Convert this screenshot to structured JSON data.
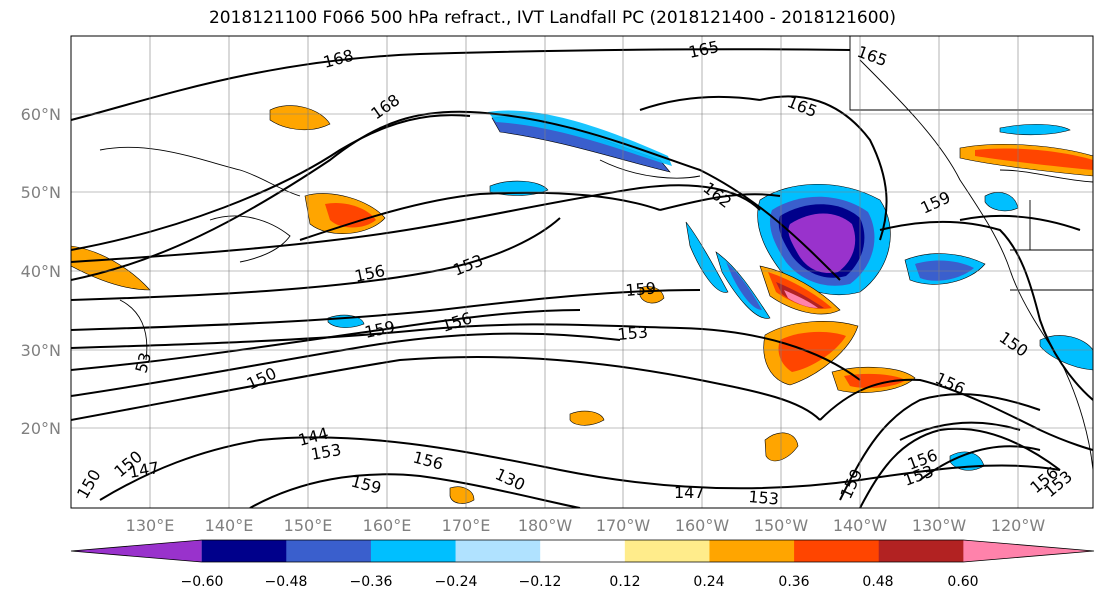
{
  "title": "2018121100 F066 500 hPa refract., IVT Landfall PC (2018121400 - 2018121600)",
  "lat_ticks": [
    "60°N",
    "50°N",
    "40°N",
    "30°N",
    "20°N"
  ],
  "lon_ticks": [
    "130°E",
    "140°E",
    "150°E",
    "160°E",
    "170°E",
    "180°W",
    "170°W",
    "160°W",
    "150°W",
    "140°W",
    "130°W",
    "120°W"
  ],
  "colorbar": {
    "colors": [
      "#9932cc",
      "#00008b",
      "#3a5fcd",
      "#00bfff",
      "#b0e2ff",
      "#ffffff",
      "#ffec8b",
      "#ffa500",
      "#ff4500",
      "#b22222",
      "#ff82ab"
    ],
    "tick_labels": [
      "−0.60",
      "−0.48",
      "−0.36",
      "−0.24",
      "−0.12",
      "0.12",
      "0.24",
      "0.36",
      "0.48",
      "0.60"
    ]
  },
  "contour_labels": [
    "168",
    "168",
    "165",
    "165",
    "165",
    "162",
    "159",
    "159",
    "159",
    "159",
    "156",
    "156",
    "156",
    "156",
    "156",
    "156",
    "153",
    "153",
    "153",
    "153",
    "153",
    "153",
    "150",
    "150",
    "150",
    "150",
    "147",
    "147",
    "144",
    "130",
    "159",
    "53"
  ]
}
